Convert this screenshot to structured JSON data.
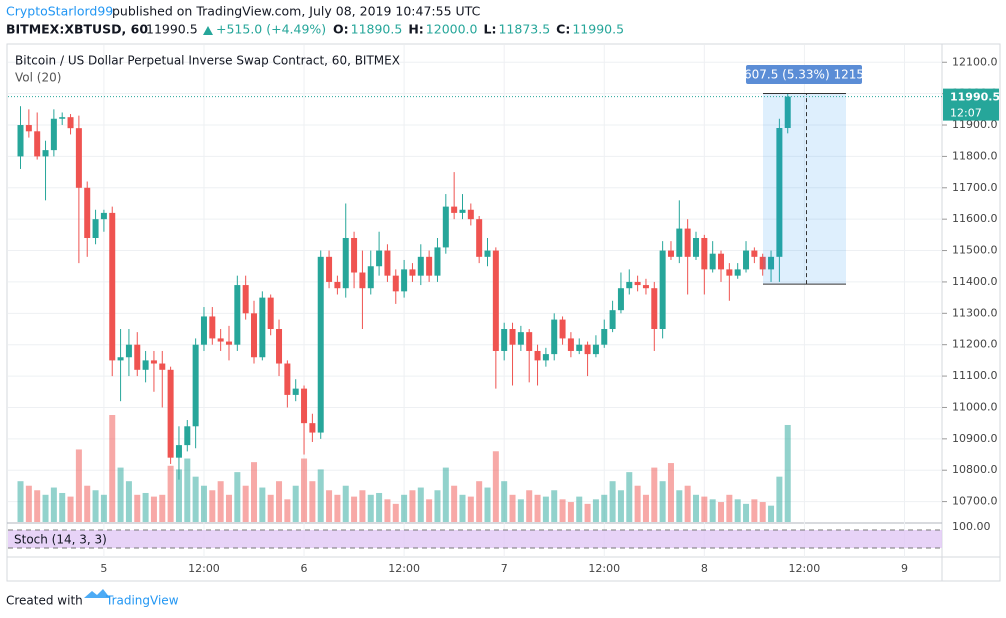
{
  "header": {
    "author": "CryptoStarlord99",
    "published": "published on TradingView.com, July 08, 2019 10:47:55 UTC",
    "symbol": "BITMEX:XBTUSD, 60",
    "last": "11990.5",
    "change": "+515.0 (+4.49%)",
    "ohlc": [
      {
        "label": "O:",
        "value": "11890.5"
      },
      {
        "label": "H:",
        "value": "12000.0"
      },
      {
        "label": "L:",
        "value": "11873.5"
      },
      {
        "label": "C:",
        "value": "11990.5"
      }
    ]
  },
  "footer": {
    "text": "Created with",
    "brand": "TradingView"
  },
  "chart_data": {
    "type": "candlestick",
    "title": "Bitcoin / US Dollar Perpetual Inverse Swap Contract, 60, BITMEX",
    "volume_label": "Vol (20)",
    "up_color": "#26a69a",
    "down_color": "#ef5350",
    "x": [
      -10,
      -9,
      -8,
      -7,
      -6,
      -5,
      -4,
      -3,
      -2,
      -1,
      0,
      1,
      2,
      3,
      4,
      5,
      6,
      7,
      8,
      9,
      10,
      11,
      12,
      13,
      14,
      15,
      16,
      17,
      18,
      19,
      20,
      21,
      22,
      23,
      24,
      25,
      26,
      27,
      28,
      29,
      30,
      31,
      32,
      33,
      34,
      35,
      36,
      37,
      38,
      39,
      40,
      41,
      42,
      43,
      44,
      45,
      46,
      47,
      48,
      49,
      50,
      51,
      52,
      53,
      54,
      55,
      56,
      57,
      58,
      59,
      60,
      61,
      62,
      63,
      64,
      65,
      66,
      67,
      68,
      69,
      70,
      71,
      72,
      73,
      74,
      75,
      76,
      77,
      78,
      79,
      80,
      81,
      82
    ],
    "open": [
      11800,
      11900,
      11880,
      11800,
      11820,
      11920,
      11925,
      11890,
      11700,
      11540,
      11600,
      11620,
      11150,
      11160,
      11200,
      11120,
      11150,
      11140,
      11120,
      10840,
      10880,
      10940,
      11200,
      11290,
      11220,
      11210,
      11200,
      11390,
      11300,
      11160,
      11350,
      11250,
      11140,
      11040,
      11060,
      10950,
      10920,
      11480,
      11400,
      11380,
      11540,
      11430,
      11380,
      11450,
      11500,
      11420,
      11370,
      11440,
      11420,
      11480,
      11420,
      11510,
      11640,
      11620,
      11630,
      11600,
      11480,
      11500,
      11180,
      11250,
      11200,
      11240,
      11180,
      11150,
      11170,
      11280,
      11220,
      11180,
      11200,
      11170,
      11200,
      11250,
      11310,
      11380,
      11400,
      11390,
      11380,
      11250,
      11500,
      11480,
      11570,
      11480,
      11540,
      11440,
      11490,
      11440,
      11420,
      11440,
      11500,
      11480,
      11440,
      11480,
      11890.5
    ],
    "high": [
      11960,
      11950,
      11940,
      11850,
      11950,
      11940,
      11935,
      11930,
      11720,
      11630,
      11630,
      11640,
      11250,
      11250,
      11240,
      11180,
      11180,
      11180,
      11130,
      10940,
      10960,
      11220,
      11320,
      11320,
      11250,
      11260,
      11420,
      11420,
      11340,
      11370,
      11360,
      11280,
      11150,
      11090,
      11070,
      10980,
      11500,
      11500,
      11420,
      11650,
      11560,
      11500,
      11500,
      11560,
      11520,
      11440,
      11470,
      11460,
      11520,
      11500,
      11540,
      11680,
      11750,
      11680,
      11650,
      11610,
      11540,
      11510,
      11270,
      11270,
      11260,
      11250,
      11200,
      11190,
      11300,
      11290,
      11240,
      11220,
      11210,
      11230,
      11280,
      11340,
      11430,
      11440,
      11420,
      11410,
      11400,
      11530,
      11530,
      11660,
      11600,
      11560,
      11550,
      11530,
      11500,
      11460,
      11460,
      11530,
      11510,
      11490,
      11500,
      11920,
      12000
    ],
    "low": [
      11760,
      11860,
      11790,
      11660,
      11800,
      11900,
      11870,
      11460,
      11480,
      11520,
      11560,
      11100,
      11020,
      11100,
      11100,
      11080,
      11050,
      11000,
      10820,
      10770,
      10860,
      10870,
      11180,
      11200,
      11180,
      11150,
      11180,
      11280,
      11140,
      11150,
      11230,
      11100,
      11000,
      11020,
      10850,
      10890,
      10900,
      11380,
      11360,
      11350,
      11380,
      11250,
      11360,
      11420,
      11400,
      11330,
      11350,
      11400,
      11390,
      11400,
      11400,
      11490,
      11600,
      11600,
      11580,
      11460,
      11450,
      11060,
      11150,
      11070,
      11180,
      11080,
      11070,
      11130,
      11150,
      11200,
      11160,
      11170,
      11100,
      11160,
      11190,
      11240,
      11300,
      11360,
      11370,
      11360,
      11180,
      11220,
      11470,
      11460,
      11360,
      11470,
      11360,
      11430,
      11400,
      11340,
      11410,
      11430,
      11460,
      11420,
      11400,
      11400,
      11873.5
    ],
    "close": [
      11900,
      11880,
      11800,
      11820,
      11920,
      11925,
      11890,
      11700,
      11540,
      11600,
      11620,
      11150,
      11160,
      11200,
      11120,
      11150,
      11140,
      11120,
      10840,
      10880,
      10940,
      11200,
      11290,
      11220,
      11210,
      11200,
      11390,
      11300,
      11160,
      11350,
      11250,
      11140,
      11040,
      11060,
      10950,
      10920,
      11480,
      11400,
      11380,
      11540,
      11430,
      11380,
      11450,
      11500,
      11420,
      11370,
      11440,
      11420,
      11480,
      11420,
      11510,
      11640,
      11620,
      11630,
      11600,
      11480,
      11500,
      11180,
      11250,
      11200,
      11240,
      11180,
      11150,
      11170,
      11280,
      11220,
      11180,
      11200,
      11170,
      11200,
      11250,
      11310,
      11380,
      11400,
      11390,
      11380,
      11250,
      11500,
      11480,
      11570,
      11480,
      11540,
      11440,
      11490,
      11440,
      11420,
      11440,
      11500,
      11480,
      11440,
      11480,
      11890.5,
      11990.5
    ],
    "volume": [
      45,
      40,
      35,
      30,
      38,
      32,
      28,
      80,
      40,
      35,
      30,
      118,
      60,
      45,
      30,
      32,
      28,
      30,
      62,
      58,
      70,
      50,
      40,
      35,
      45,
      30,
      55,
      40,
      66,
      38,
      30,
      45,
      25,
      40,
      70,
      45,
      58,
      35,
      30,
      40,
      28,
      35,
      30,
      32,
      25,
      20,
      30,
      35,
      38,
      25,
      35,
      60,
      40,
      30,
      28,
      45,
      38,
      78,
      45,
      30,
      25,
      35,
      30,
      28,
      35,
      25,
      22,
      28,
      20,
      25,
      30,
      45,
      35,
      55,
      40,
      30,
      60,
      45,
      65,
      35,
      40,
      30,
      28,
      25,
      22,
      30,
      25,
      20,
      25,
      22,
      18,
      50,
      107
    ],
    "xlim": [
      -11.5,
      100.5
    ],
    "xticks": [
      {
        "value": 0,
        "label": "5"
      },
      {
        "value": 12,
        "label": "12:00"
      },
      {
        "value": 24,
        "label": "6"
      },
      {
        "value": 36,
        "label": "12:00"
      },
      {
        "value": 48,
        "label": "7"
      },
      {
        "value": 60,
        "label": "12:00"
      },
      {
        "value": 72,
        "label": "8"
      },
      {
        "value": 84,
        "label": "12:00"
      },
      {
        "value": 96,
        "label": "9"
      }
    ],
    "ylim": [
      10635,
      12155
    ],
    "yticks": [
      {
        "value": 12100,
        "label": "12100.0"
      },
      {
        "value": 12000,
        "label": "12000.0"
      },
      {
        "value": 11900,
        "label": "11900.0"
      },
      {
        "value": 11800,
        "label": "11800.0"
      },
      {
        "value": 11700,
        "label": "11700.0"
      },
      {
        "value": 11600,
        "label": "11600.0"
      },
      {
        "value": 11500,
        "label": "11500.0"
      },
      {
        "value": 11400,
        "label": "11400.0"
      },
      {
        "value": 11300,
        "label": "11300.0"
      },
      {
        "value": 11200,
        "label": "11200.0"
      },
      {
        "value": 11100,
        "label": "11100.0"
      },
      {
        "value": 11000,
        "label": "11000.0"
      },
      {
        "value": 10900,
        "label": "10900.0"
      },
      {
        "value": 10800,
        "label": "10800.0"
      },
      {
        "value": 10700,
        "label": "10700.0"
      }
    ],
    "grid": true,
    "last_price": {
      "value": 11990.5,
      "label": "11990.5",
      "countdown": "12:07"
    },
    "measure": {
      "label": "607.5 (5.33%) 1215",
      "low": 11393,
      "high": 12000.5
    },
    "stoch": {
      "label": "Stoch (14, 3, 3)",
      "tick": "100.00"
    }
  }
}
